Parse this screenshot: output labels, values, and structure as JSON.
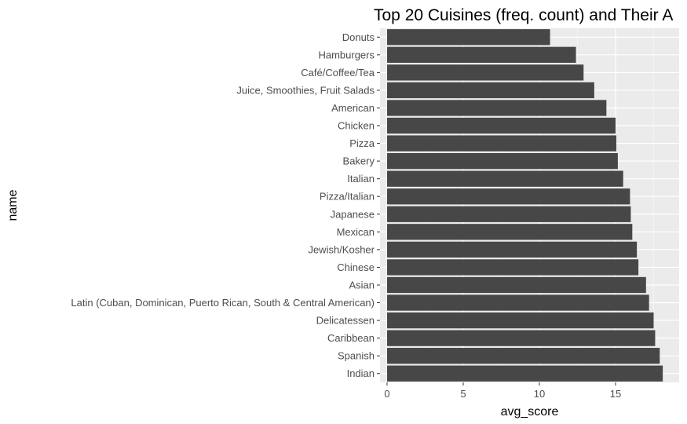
{
  "chart_data": {
    "type": "bar",
    "orientation": "horizontal",
    "title": "Top 20 Cuisines (freq. count) and Their A",
    "xlabel": "avg_score",
    "ylabel": "name",
    "xlim": [
      0,
      18.6
    ],
    "xticks": [
      "0",
      "5",
      "10",
      "15"
    ],
    "categories": [
      "Donuts",
      "Hamburgers",
      "Café/Coffee/Tea",
      "Juice, Smoothies, Fruit Salads",
      "American",
      "Chicken",
      "Pizza",
      "Bakery",
      "Italian",
      "Pizza/Italian",
      "Japanese",
      "Mexican",
      "Jewish/Kosher",
      "Chinese",
      "Asian",
      "Latin (Cuban, Dominican, Puerto Rican, South & Central American)",
      "Delicatessen",
      "Caribbean",
      "Spanish",
      "Indian"
    ],
    "values": [
      10.7,
      12.4,
      12.9,
      13.6,
      14.4,
      15.0,
      15.05,
      15.15,
      15.5,
      15.95,
      16.0,
      16.1,
      16.4,
      16.5,
      17.0,
      17.2,
      17.5,
      17.6,
      17.9,
      18.1
    ],
    "bar_color": "#474747",
    "panel_color": "#ebebeb",
    "grid": true
  }
}
